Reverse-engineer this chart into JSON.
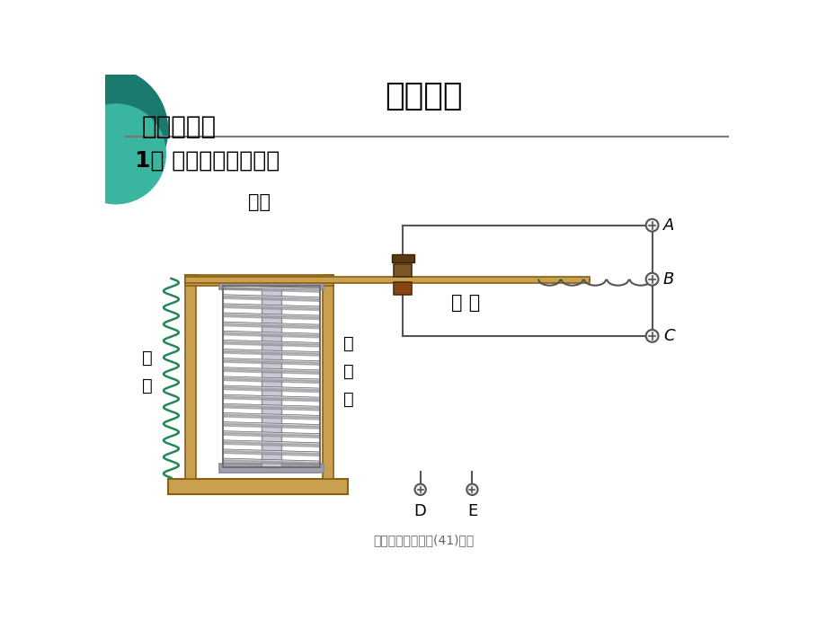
{
  "title": "新课教学",
  "section1": "一、继电器",
  "section2": "1、 电磁继电器的构造",
  "label_yuntie": "衔铁",
  "label_chudian": "触 点",
  "label_tanhuang": "弹\n簧",
  "label_dianciti": "电\n磁\n铁",
  "label_A": "A",
  "label_B": "B",
  "label_C": "C",
  "label_D": "D",
  "label_E": "E",
  "footer": "电磁继电器扬声器(41)课件",
  "bg_color": "#FFFFFF",
  "title_color": "#000000",
  "teal_dark": "#1a7a6e",
  "teal_light": "#3ab5a0",
  "wood_color": "#c8a050",
  "wood_dark": "#8B6010",
  "iron_color": "#b8b8c8",
  "iron_dark": "#888898",
  "cap_color": "#a0a0b0",
  "spring_color": "#228855",
  "wire_color": "#555555",
  "contact_color": "#7a5020",
  "contact_dark": "#4a3010"
}
